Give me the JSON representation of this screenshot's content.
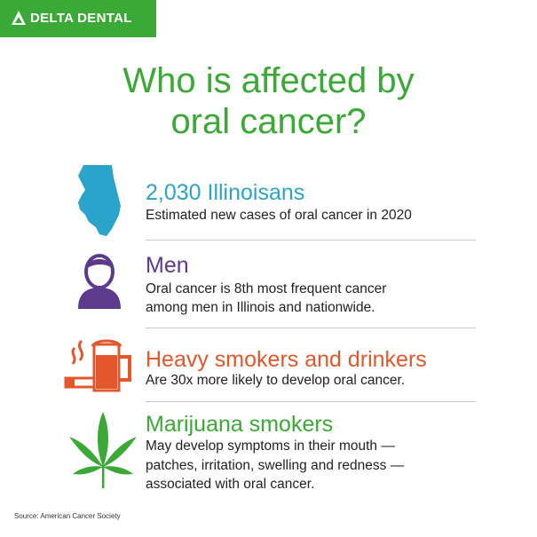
{
  "logo": "DELTA DENTAL",
  "title": [
    "Who is affected by",
    "oral cancer?"
  ],
  "items": [
    {
      "heading": "2,030 Illinoisans",
      "description": [
        "Estimated new cases of oral cancer in 2020"
      ]
    },
    {
      "heading": "Men",
      "description": [
        "Oral cancer is 8th most frequent cancer",
        "among men in Illinois and nationwide."
      ]
    },
    {
      "heading": "Heavy smokers and drinkers",
      "description": [
        "Are 30x more likely to develop oral cancer."
      ]
    },
    {
      "heading": "Marijuana smokers",
      "description": [
        "May develop symptoms in their mouth —",
        "patches, irritation, swelling and redness —",
        "associated with oral cancer."
      ]
    }
  ],
  "source": "Source: American Cancer Society"
}
